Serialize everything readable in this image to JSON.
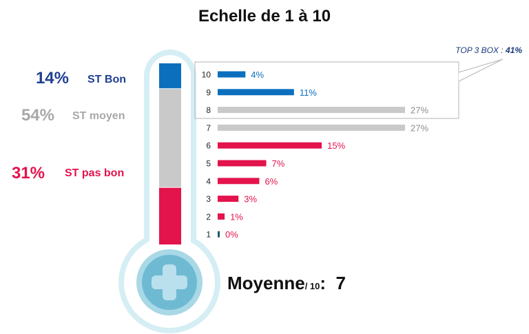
{
  "title": "Echelle de 1 à 10",
  "top3": {
    "label": "TOP 3 BOX :",
    "value": "41%"
  },
  "groups": [
    {
      "pct": "14%",
      "label": "ST Bon",
      "color": "#1f3f94",
      "bar_color": "#0b6fbd",
      "share": 0.14
    },
    {
      "pct": "54%",
      "label": "ST moyen",
      "color": "#a8a8a8",
      "bar_color": "#c9c9c9",
      "share": 0.54
    },
    {
      "pct": "31%",
      "label": "ST pas bon",
      "color": "#e3134c",
      "bar_color": "#e3134c",
      "share": 0.31
    }
  ],
  "moyenne": {
    "label": "Moyenne",
    "sub": "/ 10",
    "colon": ":",
    "value": "7"
  },
  "chart_data": {
    "type": "bar",
    "orientation": "horizontal",
    "categories": [
      "10",
      "9",
      "8",
      "7",
      "6",
      "5",
      "4",
      "3",
      "2",
      "1"
    ],
    "values": [
      4,
      11,
      27,
      27,
      15,
      7,
      6,
      3,
      1,
      0
    ],
    "labels": [
      "4%",
      "11%",
      "27%",
      "27%",
      "15%",
      "7%",
      "6%",
      "3%",
      "1%",
      "0%"
    ],
    "colors": [
      "#0b6fbd",
      "#0b6fbd",
      "#c9c9c9",
      "#c9c9c9",
      "#e3134c",
      "#e3134c",
      "#e3134c",
      "#e3134c",
      "#e3134c",
      "#1a5a78"
    ],
    "label_colors": [
      "#0b6fbd",
      "#0b6fbd",
      "#8c8c8c",
      "#8c8c8c",
      "#e3134c",
      "#e3134c",
      "#e3134c",
      "#e3134c",
      "#e3134c",
      "#e3134c"
    ],
    "xlim": [
      0,
      27
    ]
  }
}
